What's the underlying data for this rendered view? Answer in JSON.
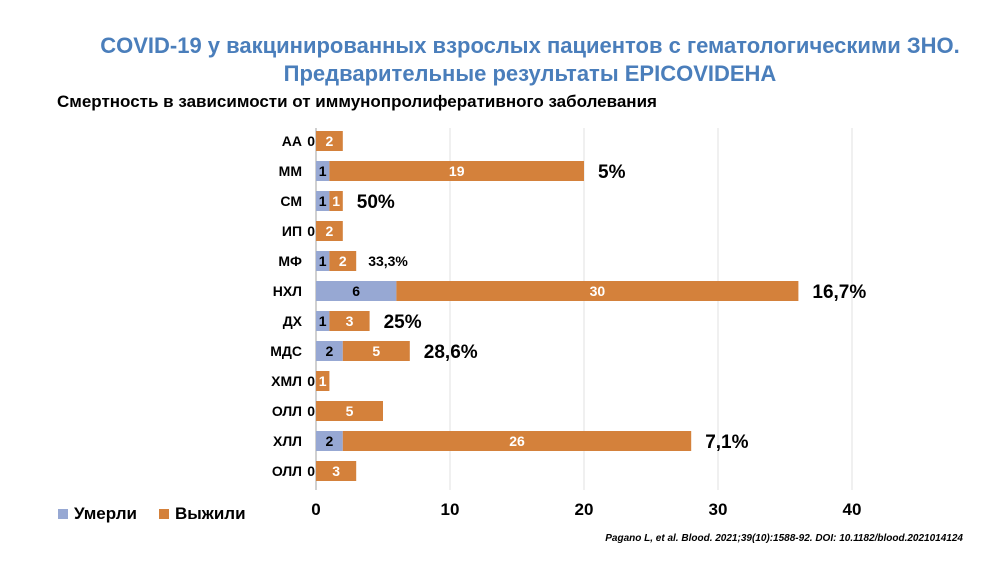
{
  "title": "COVID-19 у вакцинированных взрослых пациентов с гематологическими ЗНО. Предварительные результаты EPICOVIDEHA",
  "citation": "Pagano L, et al. Blood. 2021;39(10):1588-92. DOI: 10.1182/blood.2021014124",
  "colors": {
    "died": "#97a8d3",
    "survived": "#d4813b",
    "title": "#4a7ebb"
  },
  "chart_data": {
    "type": "bar",
    "orientation": "horizontal",
    "stacked": true,
    "title": "Смертность в зависимости от иммунопролиферативного заболевания",
    "categories": [
      "АА",
      "ММ",
      "СМ",
      "ИП",
      "МФ",
      "НХЛ",
      "ДХ",
      "МДС",
      "ХМЛ",
      "ОЛЛ",
      "ХЛЛ",
      "ОЛЛ"
    ],
    "series": [
      {
        "name": "Умерли",
        "values": [
          0,
          1,
          1,
          0,
          1,
          6,
          1,
          2,
          0,
          0,
          2,
          0
        ]
      },
      {
        "name": "Выжили",
        "values": [
          2,
          19,
          1,
          2,
          2,
          30,
          3,
          5,
          1,
          5,
          26,
          3
        ]
      }
    ],
    "annotations": [
      "",
      "5%",
      "50%",
      "",
      "33,3%",
      "16,7%",
      "25%",
      "28,6%",
      "",
      "",
      "7,1%",
      ""
    ],
    "xlim": [
      0,
      40
    ],
    "xticks": [
      "0",
      "10",
      "20",
      "30",
      "40"
    ],
    "grid": true,
    "legend": "bottom-left"
  }
}
